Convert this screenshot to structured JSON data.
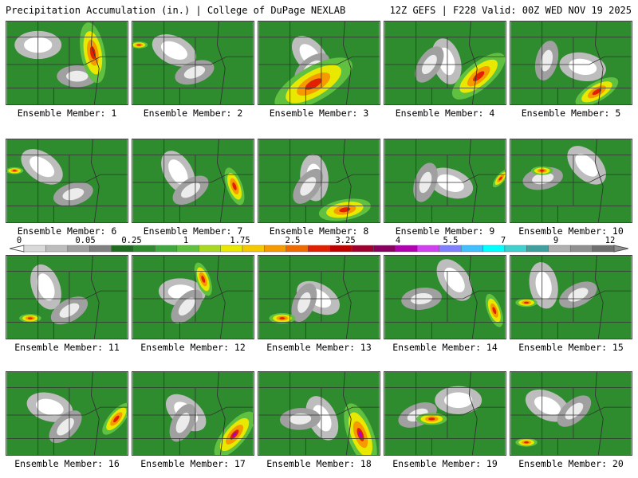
{
  "header": {
    "left": "Precipitation Accumulation (in.) | College of DuPage NEXLAB",
    "right": "12Z GEFS | F228 Valid: 00Z WED NOV 19 2025"
  },
  "colorbar": {
    "labels": [
      "0",
      "0.05",
      "0.25",
      "1",
      "1.75",
      "2.5",
      "3.25",
      "4",
      "5.5",
      "7",
      "9",
      "12"
    ],
    "colors": [
      "#d9d9d9",
      "#bdbdbd",
      "#a0a0a0",
      "#808080",
      "#1f6b1f",
      "#2e8b2e",
      "#3fa93f",
      "#60c040",
      "#a8d820",
      "#e8e800",
      "#f5c800",
      "#f59a00",
      "#f06a00",
      "#e02000",
      "#c00000",
      "#a00030",
      "#8a0060",
      "#b000b0",
      "#d040f0",
      "#8080ff",
      "#40c0ff",
      "#00ffff",
      "#40d0d0",
      "#40a0a0",
      "#b0b0b0",
      "#909090",
      "#707070"
    ]
  },
  "panels": [
    {
      "label": "Ensemble Member: 1"
    },
    {
      "label": "Ensemble Member: 2"
    },
    {
      "label": "Ensemble Member: 3"
    },
    {
      "label": "Ensemble Member: 4"
    },
    {
      "label": "Ensemble Member: 5"
    },
    {
      "label": "Ensemble Member: 6"
    },
    {
      "label": "Ensemble Member: 7"
    },
    {
      "label": "Ensemble Member: 8"
    },
    {
      "label": "Ensemble Member: 9"
    },
    {
      "label": "Ensemble Member: 10"
    },
    {
      "label": "Ensemble Member: 11"
    },
    {
      "label": "Ensemble Member: 12"
    },
    {
      "label": "Ensemble Member: 13"
    },
    {
      "label": "Ensemble Member: 14"
    },
    {
      "label": "Ensemble Member: 15"
    },
    {
      "label": "Ensemble Member: 16"
    },
    {
      "label": "Ensemble Member: 17"
    },
    {
      "label": "Ensemble Member: 18"
    },
    {
      "label": "Ensemble Member: 19"
    },
    {
      "label": "Ensemble Member: 20"
    }
  ]
}
